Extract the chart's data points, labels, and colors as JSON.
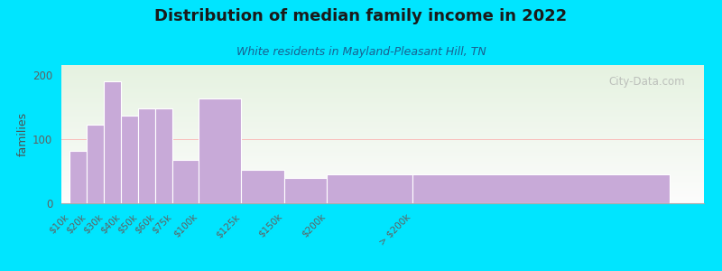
{
  "title": "Distribution of median family income in 2022",
  "subtitle": "White residents in Mayland-Pleasant Hill, TN",
  "ylabel": "families",
  "bar_color": "#c8aad8",
  "bar_edge_color": "#ffffff",
  "background_color": "#00e5ff",
  "title_color": "#1a1a1a",
  "subtitle_color": "#1a6090",
  "ylabel_color": "#505050",
  "tick_color": "#606060",
  "yticks": [
    0,
    100,
    200
  ],
  "ylim": [
    0,
    215
  ],
  "watermark": "City-Data.com",
  "figsize": [
    8.0,
    3.0
  ],
  "dpi": 100,
  "bins_left": [
    0,
    10,
    20,
    30,
    40,
    50,
    60,
    75,
    100,
    125,
    150,
    200
  ],
  "bins_right": [
    10,
    20,
    30,
    40,
    50,
    60,
    75,
    100,
    125,
    150,
    200,
    350
  ],
  "values": [
    82,
    122,
    190,
    137,
    148,
    148,
    68,
    163,
    52,
    40,
    45,
    45
  ],
  "tick_positions": [
    0,
    10,
    20,
    30,
    40,
    50,
    60,
    75,
    100,
    125,
    150,
    200,
    350
  ],
  "tick_labels": [
    "$10k",
    "$20k",
    "$30k",
    "$40k",
    "$50k",
    "$60k",
    "$75k",
    "$100k",
    "$125k",
    "$150k",
    "$200k",
    "> $200k"
  ]
}
